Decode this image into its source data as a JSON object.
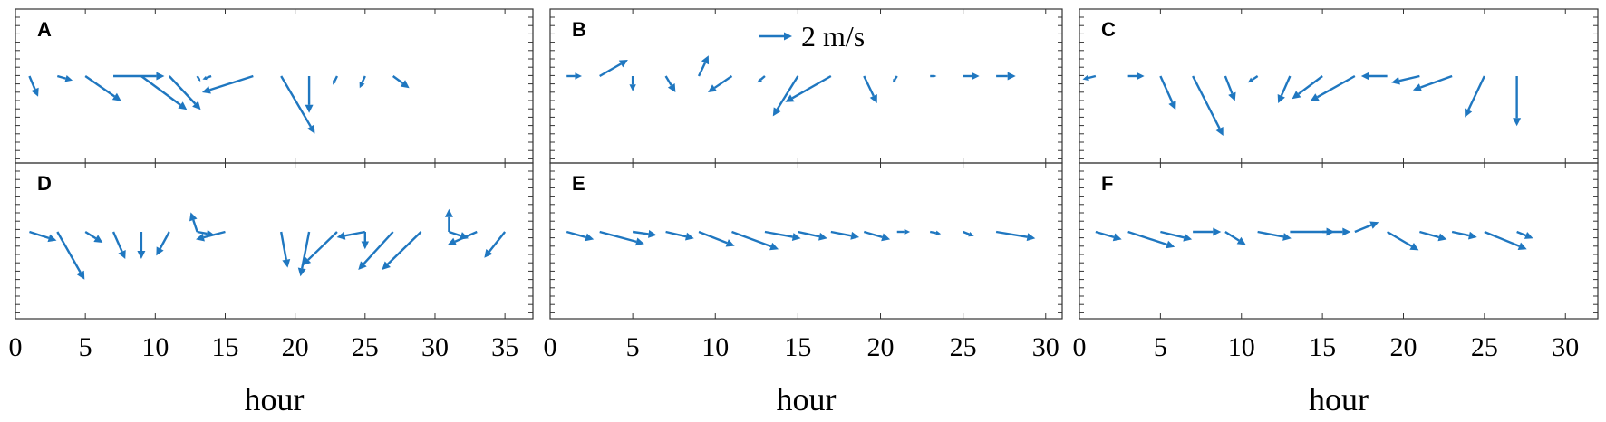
{
  "chart_data": {
    "type": "quiver",
    "color": "#1f77c0",
    "xlabel": "hour",
    "legend": {
      "label": "2 m/s",
      "speed_ms": 2,
      "position": "top"
    },
    "grid": false,
    "panels": [
      {
        "label": "A",
        "xlim": [
          0,
          37
        ],
        "xticks": [
          0,
          5,
          10,
          15,
          20,
          25,
          30,
          35
        ],
        "xlabel": "",
        "vectors": [
          {
            "x": 1,
            "u": 0.8,
            "v": -1.9
          },
          {
            "x": 3,
            "u": 1.4,
            "v": -0.4
          },
          {
            "x": 5,
            "u": 3.3,
            "v": -2.3
          },
          {
            "x": 7,
            "u": 4.7,
            "v": 0
          },
          {
            "x": 9,
            "u": 4.2,
            "v": -3.1
          },
          {
            "x": 11,
            "u": 2.9,
            "v": -3.1
          },
          {
            "x": 13,
            "u": 0.3,
            "v": -0.5
          },
          {
            "x": 14,
            "u": -0.8,
            "v": -0.3
          },
          {
            "x": 17,
            "u": -4.7,
            "v": -1.5
          },
          {
            "x": 19,
            "u": 3.1,
            "v": -5.3
          },
          {
            "x": 21,
            "u": 0,
            "v": -3.4
          },
          {
            "x": 23,
            "u": -0.4,
            "v": -0.8
          },
          {
            "x": 25,
            "u": -0.5,
            "v": -1.1
          },
          {
            "x": 27,
            "u": 1.5,
            "v": -1.1
          }
        ]
      },
      {
        "label": "B",
        "xlim": [
          0,
          31
        ],
        "xticks": [
          0,
          5,
          10,
          15,
          20,
          25,
          30
        ],
        "xlabel": "",
        "vectors": [
          {
            "x": 1,
            "u": 1.4,
            "v": 0
          },
          {
            "x": 3,
            "u": 2.6,
            "v": 1.5
          },
          {
            "x": 5,
            "u": 0,
            "v": -1.4
          },
          {
            "x": 7,
            "u": 0.9,
            "v": -1.5
          },
          {
            "x": 9,
            "u": 0.9,
            "v": 1.9
          },
          {
            "x": 11,
            "u": -2.2,
            "v": -1.5
          },
          {
            "x": 13,
            "u": -0.7,
            "v": -0.6
          },
          {
            "x": 15,
            "u": -2.3,
            "v": -3.7
          },
          {
            "x": 17,
            "u": -4.2,
            "v": -2.4
          },
          {
            "x": 19,
            "u": 1.2,
            "v": -2.5
          },
          {
            "x": 21,
            "u": -0.4,
            "v": -0.6
          },
          {
            "x": 23,
            "u": 0.6,
            "v": 0
          },
          {
            "x": 25,
            "u": 1.5,
            "v": 0
          },
          {
            "x": 27,
            "u": 1.8,
            "v": 0
          }
        ]
      },
      {
        "label": "C",
        "xlim": [
          0,
          32
        ],
        "xticks": [
          0,
          5,
          10,
          15,
          20,
          25,
          30
        ],
        "xlabel": "hour",
        "vectors": [
          {
            "x": 1,
            "u": -1.2,
            "v": -0.3
          },
          {
            "x": 3,
            "u": 1.5,
            "v": 0
          },
          {
            "x": 5,
            "u": 1.4,
            "v": -3.1
          },
          {
            "x": 7,
            "u": 2.8,
            "v": -5.5
          },
          {
            "x": 9,
            "u": 0.9,
            "v": -2.3
          },
          {
            "x": 11,
            "u": -0.9,
            "v": -0.6
          },
          {
            "x": 13,
            "u": -1.1,
            "v": -2.5
          },
          {
            "x": 15,
            "u": -2.8,
            "v": -2.1
          },
          {
            "x": 17,
            "u": -4.1,
            "v": -2.3
          },
          {
            "x": 19,
            "u": -2.4,
            "v": 0
          },
          {
            "x": 21,
            "u": -2.6,
            "v": -0.6
          },
          {
            "x": 23,
            "u": -3.6,
            "v": -1.3
          },
          {
            "x": 25,
            "u": -1.8,
            "v": -3.8
          },
          {
            "x": 27,
            "u": 0,
            "v": -4.6
          }
        ]
      },
      {
        "label": "D",
        "xlim": [
          0,
          37
        ],
        "xticks": [
          0,
          5,
          10,
          15,
          20,
          25,
          30,
          35
        ],
        "xlabel": "hour",
        "vectors": [
          {
            "x": 1,
            "u": 2.5,
            "v": -0.8
          },
          {
            "x": 3,
            "u": 2.5,
            "v": -4.4
          },
          {
            "x": 5,
            "u": 1.6,
            "v": -1
          },
          {
            "x": 7,
            "u": 1.1,
            "v": -2.5
          },
          {
            "x": 9,
            "u": 0,
            "v": -2.5
          },
          {
            "x": 11,
            "u": -1.2,
            "v": -2.2
          },
          {
            "x": 13,
            "u": -0.6,
            "v": 1.8
          },
          {
            "x": 13,
            "u": 1.6,
            "v": -0.3
          },
          {
            "x": 15,
            "u": -2.7,
            "v": -0.7
          },
          {
            "x": 19,
            "u": 0.6,
            "v": -3.3
          },
          {
            "x": 21,
            "u": -0.8,
            "v": -4.1
          },
          {
            "x": 23,
            "u": -3.2,
            "v": -3.1
          },
          {
            "x": 25,
            "u": -2.6,
            "v": -0.5
          },
          {
            "x": 25,
            "u": 0,
            "v": -1.6
          },
          {
            "x": 27,
            "u": -3.2,
            "v": -3.5
          },
          {
            "x": 29,
            "u": -3.6,
            "v": -3.5
          },
          {
            "x": 31,
            "u": 0,
            "v": 2.1
          },
          {
            "x": 31,
            "u": 1.8,
            "v": -0.6
          },
          {
            "x": 33,
            "u": -2.7,
            "v": -1.2
          },
          {
            "x": 35,
            "u": -1.9,
            "v": -2.4
          }
        ]
      },
      {
        "label": "E",
        "xlim": [
          0,
          31
        ],
        "xticks": [
          0,
          5,
          10,
          15,
          20,
          25,
          30
        ],
        "xlabel": "hour",
        "vectors": [
          {
            "x": 1,
            "u": 2.5,
            "v": -0.7
          },
          {
            "x": 3,
            "u": 4.1,
            "v": -1.1
          },
          {
            "x": 5,
            "u": 2.2,
            "v": -0.3
          },
          {
            "x": 7,
            "u": 2.6,
            "v": -0.6
          },
          {
            "x": 9,
            "u": 3.3,
            "v": -1.3
          },
          {
            "x": 11,
            "u": 4.3,
            "v": -1.6
          },
          {
            "x": 13,
            "u": 3.3,
            "v": -0.6
          },
          {
            "x": 15,
            "u": 2.7,
            "v": -0.6
          },
          {
            "x": 17,
            "u": 2.6,
            "v": -0.5
          },
          {
            "x": 19,
            "u": 2.4,
            "v": -0.7
          },
          {
            "x": 21,
            "u": 1.2,
            "v": 0
          },
          {
            "x": 23,
            "u": 1,
            "v": -0.2
          },
          {
            "x": 25,
            "u": 1,
            "v": -0.4
          },
          {
            "x": 27,
            "u": 3.6,
            "v": -0.6
          }
        ]
      },
      {
        "label": "F",
        "xlim": [
          0,
          32
        ],
        "xticks": [
          0,
          5,
          10,
          15,
          20,
          25,
          30
        ],
        "xlabel": "hour",
        "vectors": [
          {
            "x": 1,
            "u": 2.4,
            "v": -0.7
          },
          {
            "x": 3,
            "u": 4.3,
            "v": -1.4
          },
          {
            "x": 5,
            "u": 2.9,
            "v": -0.7
          },
          {
            "x": 7,
            "u": 2.6,
            "v": 0
          },
          {
            "x": 9,
            "u": 1.9,
            "v": -1.2
          },
          {
            "x": 11,
            "u": 3.1,
            "v": -0.6
          },
          {
            "x": 13,
            "u": 4.1,
            "v": 0
          },
          {
            "x": 15,
            "u": 2.6,
            "v": 0
          },
          {
            "x": 17,
            "u": 2.2,
            "v": 0.9
          },
          {
            "x": 19,
            "u": 2.9,
            "v": -1.7
          },
          {
            "x": 21,
            "u": 2.5,
            "v": -0.7
          },
          {
            "x": 23,
            "u": 2.3,
            "v": -0.5
          },
          {
            "x": 25,
            "u": 3.9,
            "v": -1.6
          },
          {
            "x": 27,
            "u": 1.5,
            "v": -0.6
          }
        ]
      }
    ]
  }
}
